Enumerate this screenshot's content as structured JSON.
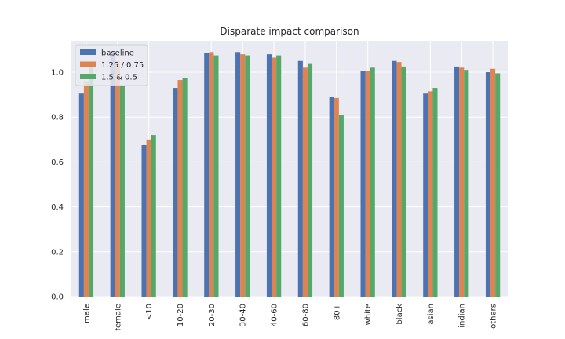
{
  "chart_data": {
    "type": "bar",
    "title": "Disparate impact comparison",
    "xlabel": "",
    "ylabel": "",
    "ylim": [
      0,
      1.14
    ],
    "yticks": [
      "0.0",
      "0.2",
      "0.4",
      "0.6",
      "0.8",
      "1.0"
    ],
    "grid": true,
    "legend_position": "top-left",
    "categories": [
      "male",
      "female",
      "<10",
      "10-20",
      "20-30",
      "30-40",
      "40-60",
      "60-80",
      "80+",
      "white",
      "black",
      "asian",
      "indian",
      "others"
    ],
    "series": [
      {
        "name": "baseline",
        "color": "#4c72b0",
        "values": [
          0.905,
          1.095,
          0.675,
          0.93,
          1.085,
          1.09,
          1.08,
          1.05,
          0.89,
          1.005,
          1.05,
          0.905,
          1.025,
          1.0
        ]
      },
      {
        "name": "1.25 / 0.75",
        "color": "#dd8452",
        "values": [
          0.96,
          1.05,
          0.7,
          0.965,
          1.09,
          1.08,
          1.065,
          1.02,
          0.885,
          1.005,
          1.045,
          0.915,
          1.02,
          1.015
        ]
      },
      {
        "name": "1.5 & 0.5",
        "color": "#55a868",
        "values": [
          1.035,
          0.94,
          0.72,
          0.975,
          1.075,
          1.075,
          1.075,
          1.04,
          0.81,
          1.02,
          1.025,
          0.93,
          1.01,
          0.995
        ]
      }
    ],
    "background_color": "#eaeaf2",
    "grid_color": "#ffffff"
  }
}
